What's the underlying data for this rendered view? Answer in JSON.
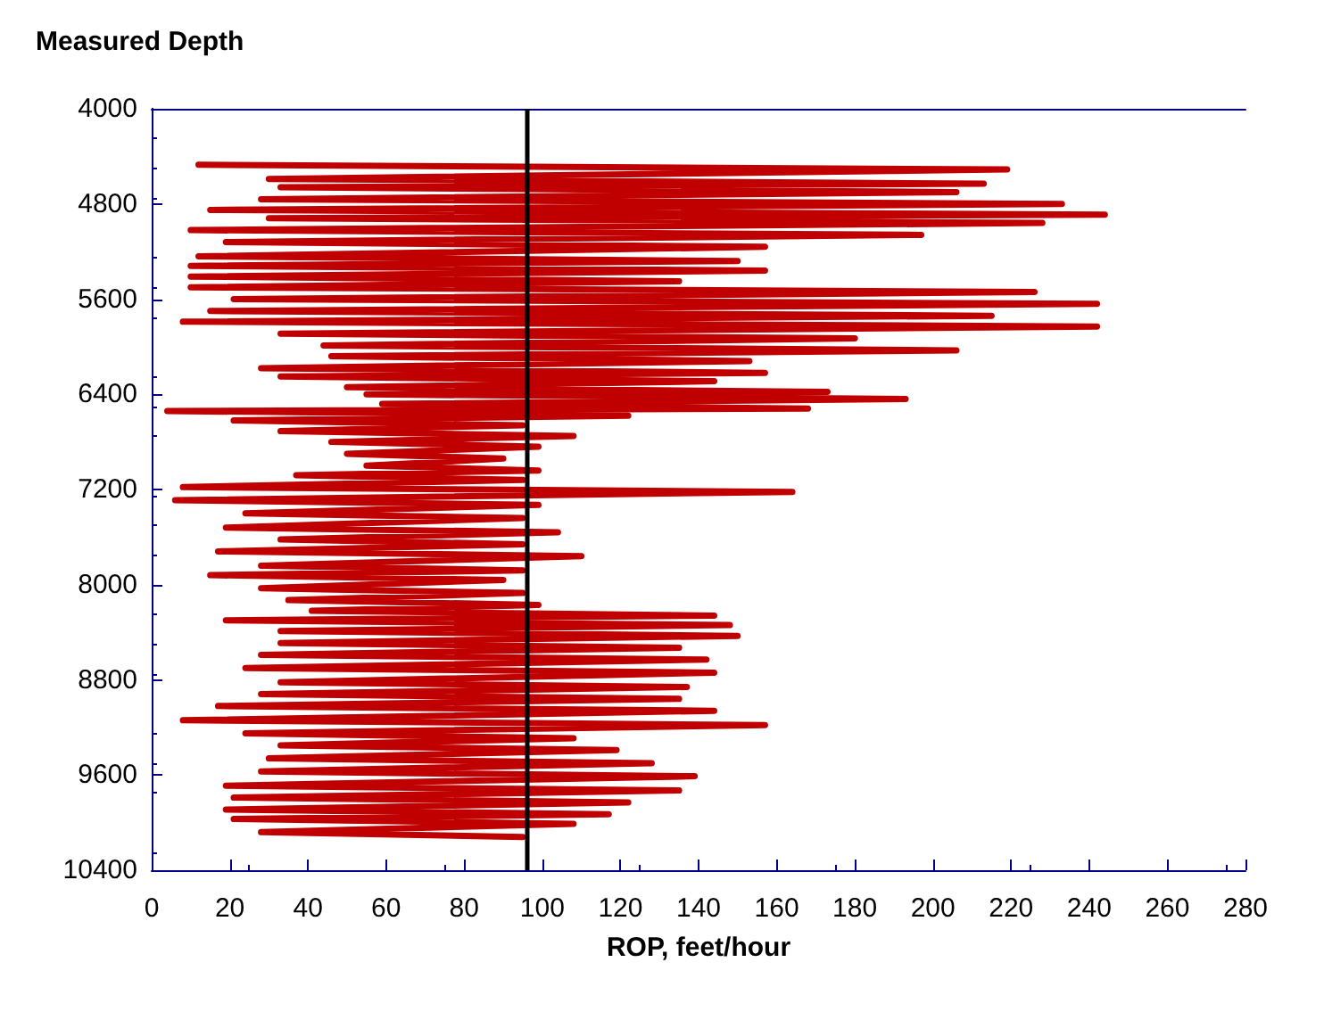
{
  "chart_data": {
    "type": "line",
    "ylabel": "Measured Depth",
    "xlabel": "ROP, feet/hour",
    "xlim": [
      0,
      280
    ],
    "xticks": [
      0,
      20,
      40,
      60,
      80,
      100,
      120,
      140,
      160,
      180,
      200,
      220,
      240,
      260,
      280
    ],
    "ylim": [
      10400,
      4000
    ],
    "yticks": [
      4000,
      4800,
      5600,
      6400,
      7200,
      8000,
      8800,
      9600,
      10400
    ],
    "grid": false,
    "marker": "none",
    "line_style": "solid",
    "ref_lines": [
      {
        "axis": "x",
        "value": 96,
        "color": "#000000"
      }
    ],
    "series": [
      {
        "color": "#c00000",
        "x": [
          12,
          219,
          30,
          213,
          33,
          206,
          28,
          233,
          15,
          244,
          30,
          228,
          10,
          197,
          19,
          157,
          12,
          150,
          10,
          157,
          10,
          135,
          10,
          226,
          21,
          242,
          15,
          215,
          8,
          242,
          33,
          180,
          44,
          206,
          46,
          153,
          28,
          157,
          33,
          144,
          50,
          173,
          55,
          193,
          59,
          168,
          4,
          122,
          21,
          95,
          33,
          108,
          46,
          99,
          50,
          90,
          55,
          99,
          37,
          95,
          8,
          164,
          6,
          99,
          24,
          95,
          19,
          104,
          33,
          95,
          17,
          110,
          28,
          95,
          15,
          90,
          28,
          95,
          35,
          99,
          41,
          144,
          19,
          148,
          33,
          150,
          33,
          135,
          28,
          142,
          24,
          144,
          33,
          137,
          28,
          135,
          17,
          144,
          8,
          157,
          24,
          108,
          33,
          119,
          30,
          128,
          28,
          139,
          19,
          135,
          21,
          122,
          19,
          117,
          21,
          108,
          28,
          95
        ],
        "values": [
          4470,
          4510,
          4590,
          4630,
          4660,
          4700,
          4760,
          4800,
          4850,
          4890,
          4920,
          4960,
          5020,
          5060,
          5120,
          5160,
          5240,
          5280,
          5320,
          5360,
          5410,
          5450,
          5500,
          5540,
          5600,
          5640,
          5700,
          5740,
          5790,
          5830,
          5890,
          5930,
          5990,
          6030,
          6080,
          6120,
          6180,
          6220,
          6250,
          6290,
          6340,
          6380,
          6400,
          6440,
          6480,
          6520,
          6540,
          6580,
          6620,
          6660,
          6710,
          6750,
          6800,
          6840,
          6900,
          6940,
          7000,
          7040,
          7080,
          7120,
          7180,
          7220,
          7290,
          7330,
          7400,
          7440,
          7520,
          7560,
          7620,
          7660,
          7720,
          7760,
          7840,
          7880,
          7920,
          7960,
          8030,
          8070,
          8130,
          8170,
          8220,
          8260,
          8300,
          8340,
          8390,
          8430,
          8490,
          8530,
          8590,
          8630,
          8700,
          8740,
          8820,
          8860,
          8920,
          8960,
          9020,
          9060,
          9140,
          9180,
          9250,
          9290,
          9350,
          9390,
          9460,
          9500,
          9570,
          9610,
          9690,
          9730,
          9790,
          9830,
          9890,
          9930,
          9970,
          10010,
          10080,
          10120
        ]
      }
    ]
  }
}
